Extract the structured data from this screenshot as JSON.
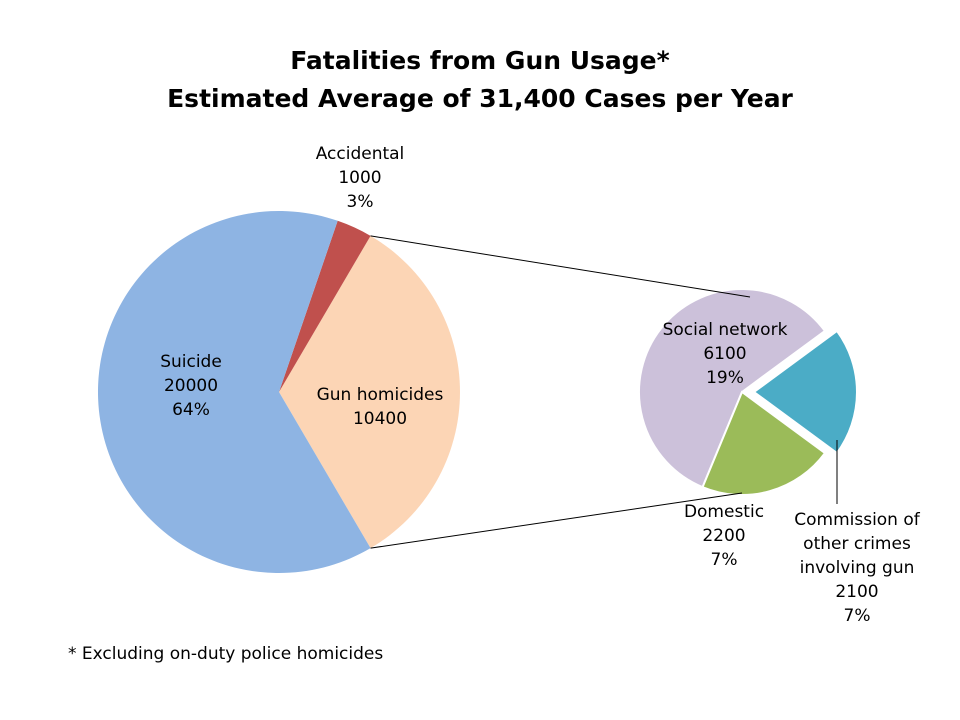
{
  "title": "Fatalities from Gun Usage*",
  "subtitle": "Estimated Average of 31,400 Cases per Year",
  "footnote": "* Excluding on-duty police homicides",
  "chart_data": {
    "type": "pie",
    "title": "Fatalities from Gun Usage*",
    "subtitle": "Estimated Average of 31,400 Cases per Year",
    "main_pie": [
      {
        "label": "Suicide",
        "value": 20000,
        "percent": "64%",
        "color": "#8eb4e3"
      },
      {
        "label": "Accidental",
        "value": 1000,
        "percent": "3%",
        "color": "#c0504d"
      },
      {
        "label": "Gun homicides",
        "value": 10400,
        "percent": null,
        "color": "#fcd5b5"
      }
    ],
    "breakdown_of": "Gun homicides",
    "secondary_pie": [
      {
        "label": "Social network",
        "value": 6100,
        "percent": "19%",
        "color": "#ccc1da"
      },
      {
        "label": "Commission of other crimes involving gun",
        "value": 2100,
        "percent": "7%",
        "color": "#4bacc6",
        "exploded": true
      },
      {
        "label": "Domestic",
        "value": 2200,
        "percent": "7%",
        "color": "#9bbb59"
      }
    ]
  }
}
